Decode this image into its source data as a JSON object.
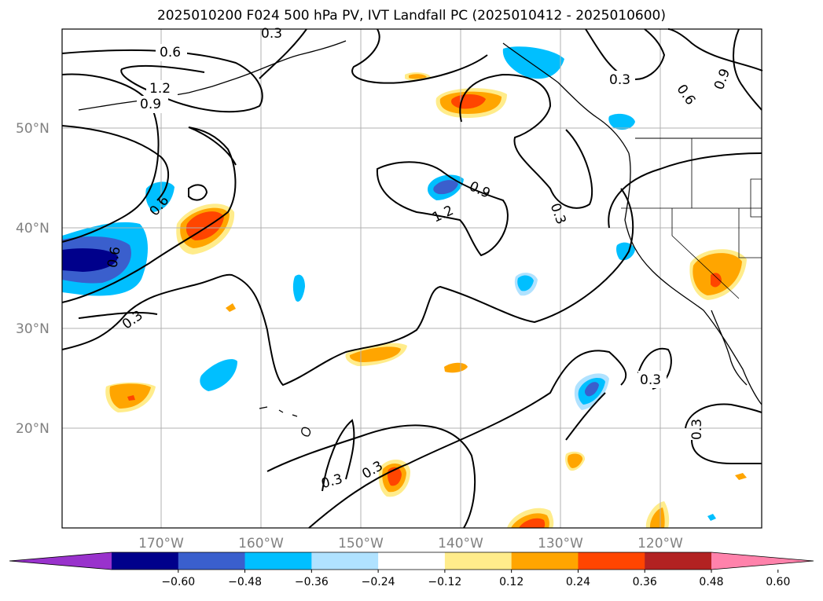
{
  "title": "2025010200 F024 500 hPa PV, IVT Landfall PC (2025010412 - 2025010600)",
  "lat_labels": [
    "50°N",
    "40°N",
    "30°N",
    "20°N"
  ],
  "lon_labels": [
    "170°W",
    "160°W",
    "150°W",
    "140°W",
    "130°W",
    "120°W"
  ],
  "contour_labels": [
    "0.6",
    "1.2",
    "0.9",
    "0.6",
    "0.9",
    "0.6",
    "0.3",
    "0.9",
    "1.2",
    "0.3",
    "0.3",
    "0.6",
    "0.3",
    "0.3",
    "0.3",
    "0.3",
    "0.3"
  ],
  "colorbar": {
    "ticks": [
      "−0.60",
      "−0.48",
      "−0.36",
      "−0.24",
      "−0.12",
      "0.12",
      "0.24",
      "0.36",
      "0.48",
      "0.60"
    ],
    "colors": [
      "#9932cc",
      "#00008b",
      "#3a5fcd",
      "#00bfff",
      "#b0e2ff",
      "#ffffff",
      "#ffec8b",
      "#ffa500",
      "#ff4500",
      "#b22222",
      "#ff82ab"
    ]
  },
  "palette": {
    "neg_strong": "#00008b",
    "neg_med": "#3a5fcd",
    "neg": "#00bfff",
    "neg_light": "#b0e2ff",
    "pos_light": "#ffec8b",
    "pos": "#ffa500",
    "pos_med": "#ff4500",
    "grid": "#b0b0b0"
  }
}
